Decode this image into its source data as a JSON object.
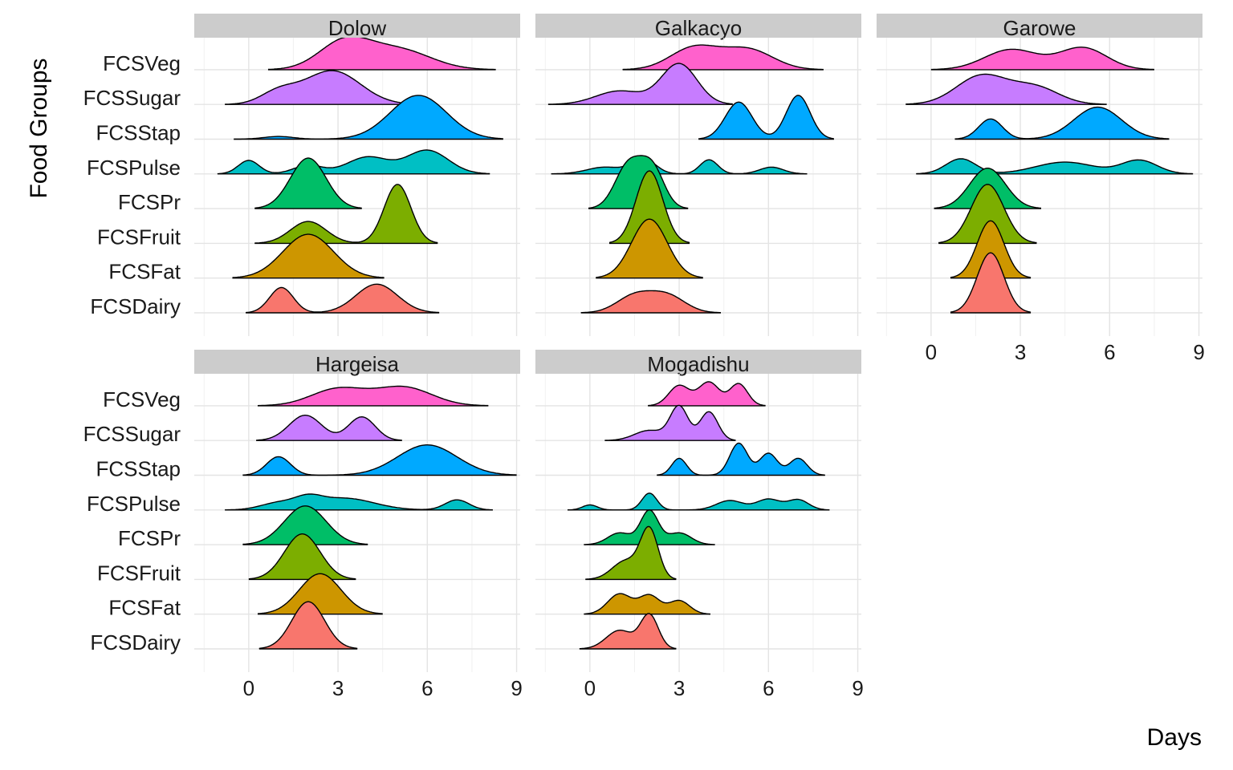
{
  "chart_data": {
    "type": "ridgeline",
    "xlabel": "Days",
    "ylabel": "Food Groups",
    "x_ticks": [
      0,
      3,
      6,
      9
    ],
    "grid": true,
    "groups": [
      "FCSDairy",
      "FCSFat",
      "FCSFruit",
      "FCSPr",
      "FCSPulse",
      "FCSStap",
      "FCSSugar",
      "FCSVeg"
    ],
    "colors": {
      "FCSDairy": "#F8766D",
      "FCSFat": "#CD9600",
      "FCSFruit": "#7CAE00",
      "FCSPr": "#00BE67",
      "FCSPulse": "#00BFC4",
      "FCSStap": "#00A9FF",
      "FCSSugar": "#C77CFF",
      "FCSVeg": "#FF61CC"
    },
    "panels": [
      {
        "name": "Dolow",
        "densities": {
          "FCSDairy": [
            [
              1.1,
              0.4,
              0.75
            ],
            [
              4.3,
              0.7,
              0.85
            ]
          ],
          "FCSFat": [
            [
              2.0,
              0.85,
              1.3
            ]
          ],
          "FCSFruit": [
            [
              2.0,
              0.6,
              0.65
            ],
            [
              5.0,
              0.45,
              1.75
            ]
          ],
          "FCSPr": [
            [
              2.0,
              0.6,
              1.5
            ]
          ],
          "FCSPulse": [
            [
              0.0,
              0.35,
              0.4
            ],
            [
              2.0,
              0.5,
              0.25
            ],
            [
              4.0,
              0.7,
              0.5
            ],
            [
              6.0,
              0.7,
              0.7
            ]
          ],
          "FCSStap": [
            [
              1.0,
              0.5,
              0.08
            ],
            [
              5.7,
              0.95,
              1.3
            ]
          ],
          "FCSSugar": [
            [
              1.0,
              0.6,
              0.35
            ],
            [
              2.8,
              0.95,
              1.0
            ]
          ],
          "FCSVeg": [
            [
              3.2,
              0.85,
              0.8
            ],
            [
              5.0,
              1.1,
              0.6
            ]
          ]
        }
      },
      {
        "name": "Galkacyo",
        "densities": {
          "FCSDairy": [
            [
              1.5,
              0.6,
              0.5
            ],
            [
              2.6,
              0.6,
              0.5
            ]
          ],
          "FCSFat": [
            [
              2.0,
              0.6,
              1.75
            ]
          ],
          "FCSFruit": [
            [
              2.0,
              0.45,
              2.15
            ]
          ],
          "FCSPr": [
            [
              1.3,
              0.45,
              1.3
            ],
            [
              2.1,
              0.4,
              1.15
            ]
          ],
          "FCSPulse": [
            [
              0.5,
              0.6,
              0.2
            ],
            [
              1.8,
              0.4,
              0.45
            ],
            [
              4.0,
              0.3,
              0.42
            ],
            [
              6.1,
              0.4,
              0.2
            ]
          ],
          "FCSStap": [
            [
              5.0,
              0.45,
              1.1
            ],
            [
              7.0,
              0.4,
              1.3
            ]
          ],
          "FCSSugar": [
            [
              1.0,
              0.8,
              0.4
            ],
            [
              3.0,
              0.6,
              1.2
            ]
          ],
          "FCSVeg": [
            [
              3.5,
              0.8,
              0.65
            ],
            [
              5.3,
              0.85,
              0.6
            ]
          ]
        }
      },
      {
        "name": "Garowe",
        "densities": {
          "FCSDairy": [
            [
              2.0,
              0.45,
              1.78
            ]
          ],
          "FCSFat": [
            [
              2.0,
              0.45,
              1.7
            ]
          ],
          "FCSFruit": [
            [
              1.9,
              0.55,
              1.75
            ]
          ],
          "FCSPr": [
            [
              1.9,
              0.6,
              1.2
            ]
          ],
          "FCSPulse": [
            [
              1.0,
              0.5,
              0.45
            ],
            [
              4.5,
              1.0,
              0.35
            ],
            [
              7.0,
              0.6,
              0.4
            ]
          ],
          "FCSStap": [
            [
              2.0,
              0.4,
              0.6
            ],
            [
              5.6,
              0.8,
              0.95
            ]
          ],
          "FCSSugar": [
            [
              1.7,
              0.85,
              0.85
            ],
            [
              3.5,
              0.8,
              0.5
            ]
          ],
          "FCSVeg": [
            [
              2.7,
              0.9,
              0.6
            ],
            [
              5.1,
              0.8,
              0.65
            ]
          ]
        }
      },
      {
        "name": "Hargeisa",
        "densities": {
          "FCSDairy": [
            [
              2.0,
              0.55,
              1.4
            ]
          ],
          "FCSFat": [
            [
              2.4,
              0.7,
              1.2
            ]
          ],
          "FCSFruit": [
            [
              1.8,
              0.6,
              1.35
            ]
          ],
          "FCSPr": [
            [
              1.9,
              0.7,
              1.15
            ]
          ],
          "FCSPulse": [
            [
              1.0,
              0.6,
              0.2
            ],
            [
              2.0,
              0.45,
              0.25
            ],
            [
              3.2,
              1.0,
              0.35
            ],
            [
              7.0,
              0.4,
              0.3
            ]
          ],
          "FCSStap": [
            [
              1.0,
              0.4,
              0.55
            ],
            [
              6.0,
              1.0,
              0.9
            ]
          ],
          "FCSSugar": [
            [
              1.9,
              0.55,
              0.75
            ],
            [
              3.8,
              0.45,
              0.7
            ]
          ],
          "FCSVeg": [
            [
              3.0,
              0.9,
              0.5
            ],
            [
              5.2,
              0.95,
              0.55
            ]
          ]
        }
      },
      {
        "name": "Mogadishu",
        "densities": {
          "FCSDairy": [
            [
              1.0,
              0.45,
              0.55
            ],
            [
              2.0,
              0.3,
              1.0
            ]
          ],
          "FCSFat": [
            [
              1.0,
              0.4,
              0.6
            ],
            [
              2.0,
              0.35,
              0.55
            ],
            [
              3.0,
              0.35,
              0.4
            ]
          ],
          "FCSFruit": [
            [
              1.2,
              0.45,
              0.55
            ],
            [
              2.0,
              0.3,
              1.45
            ]
          ],
          "FCSPr": [
            [
              1.0,
              0.4,
              0.35
            ],
            [
              2.0,
              0.3,
              1.0
            ],
            [
              3.0,
              0.4,
              0.35
            ]
          ],
          "FCSPulse": [
            [
              0.0,
              0.25,
              0.15
            ],
            [
              2.0,
              0.25,
              0.5
            ],
            [
              4.7,
              0.45,
              0.28
            ],
            [
              6.0,
              0.4,
              0.32
            ],
            [
              7.0,
              0.35,
              0.3
            ]
          ],
          "FCSStap": [
            [
              3.0,
              0.25,
              0.5
            ],
            [
              5.0,
              0.3,
              0.95
            ],
            [
              6.0,
              0.3,
              0.65
            ],
            [
              7.0,
              0.3,
              0.5
            ]
          ],
          "FCSSugar": [
            [
              2.0,
              0.5,
              0.3
            ],
            [
              3.0,
              0.3,
              1.0
            ],
            [
              4.0,
              0.3,
              0.85
            ]
          ],
          "FCSVeg": [
            [
              3.0,
              0.35,
              0.6
            ],
            [
              4.0,
              0.35,
              0.7
            ],
            [
              5.0,
              0.3,
              0.65
            ]
          ]
        }
      }
    ],
    "density_note": "each density is given as [center_day, spread_days, relative_height] components"
  }
}
